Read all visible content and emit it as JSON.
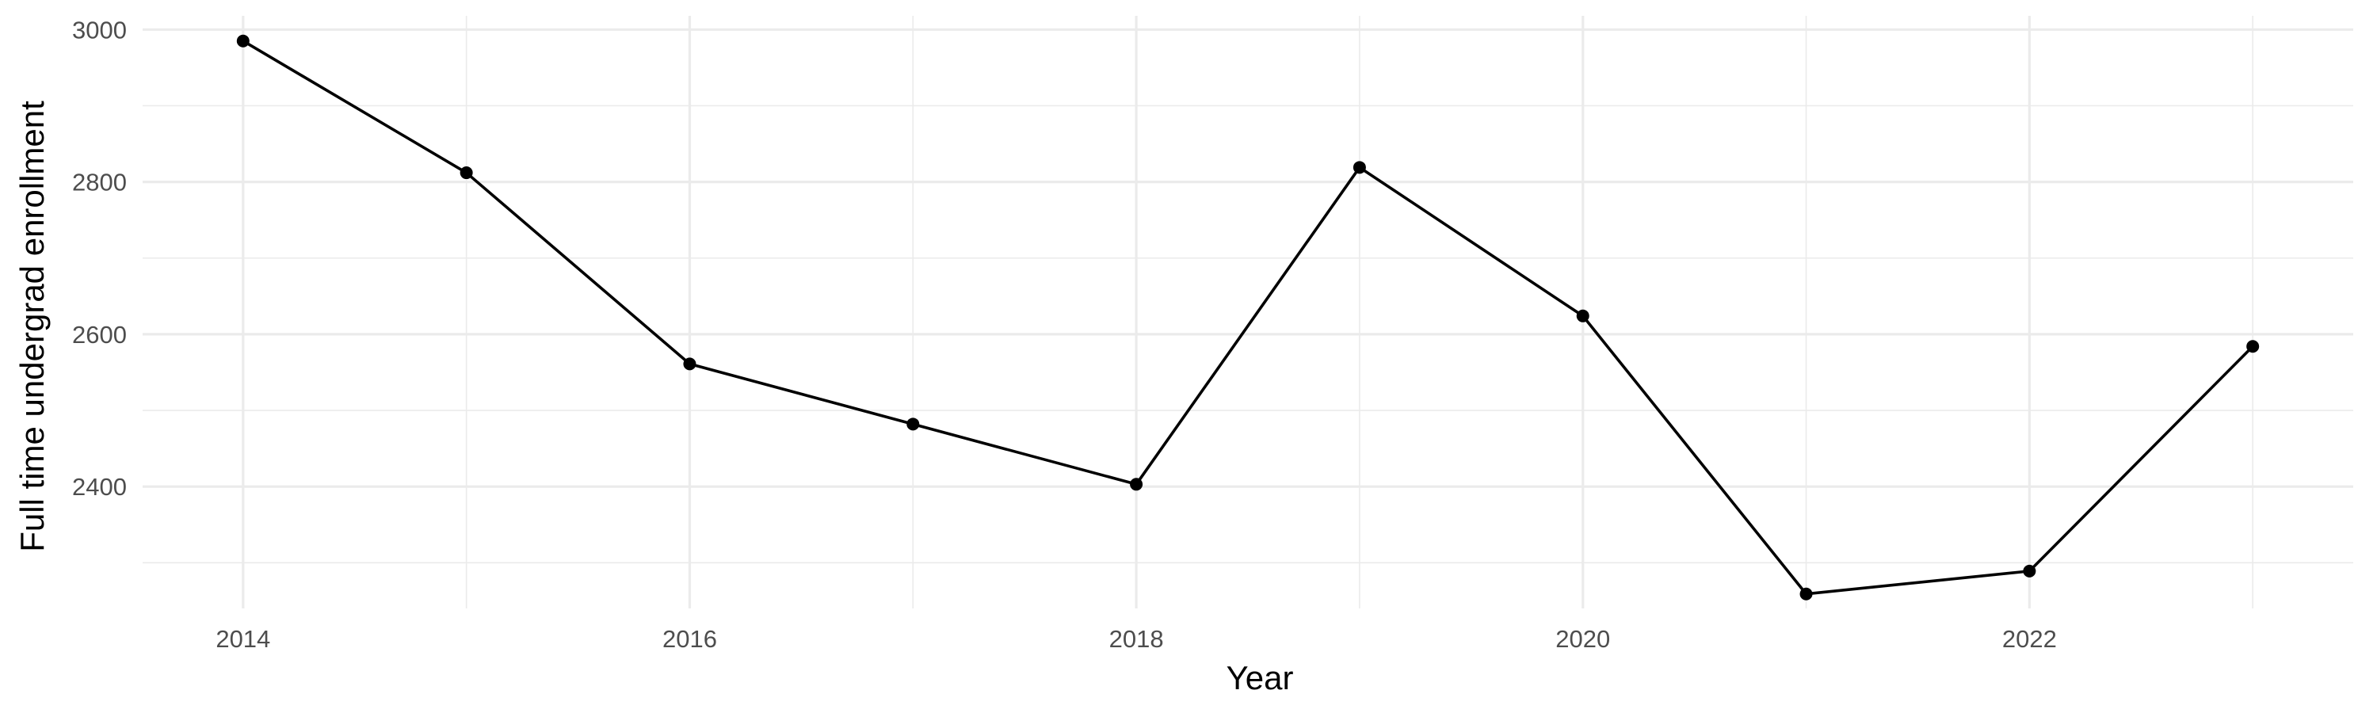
{
  "chart_data": {
    "type": "line",
    "title": "",
    "xlabel": "Year",
    "ylabel": "Full time undergrad enrollment",
    "x": [
      2014,
      2015,
      2016,
      2017,
      2018,
      2019,
      2020,
      2021,
      2022,
      2023
    ],
    "series": [
      {
        "values": [
          2985,
          2812,
          2561,
          2482,
          2403,
          2819,
          2624,
          2259,
          2289,
          2584
        ]
      }
    ],
    "xlim": [
      2013.55,
      2023.45
    ],
    "ylim": [
      2240,
      3018
    ],
    "x_major_ticks": [
      2014,
      2016,
      2018,
      2020,
      2022
    ],
    "x_minor_ticks": [
      2015,
      2017,
      2019,
      2021,
      2023
    ],
    "y_major_ticks": [
      2400,
      2600,
      2800,
      3000
    ],
    "y_minor_ticks": [
      2300,
      2500,
      2700,
      2900
    ],
    "x_tick_labels": [
      "2014",
      "2016",
      "2018",
      "2020",
      "2022"
    ],
    "y_tick_labels": [
      "2400",
      "2600",
      "2800",
      "3000"
    ],
    "grid": true,
    "legend": "none",
    "colors": {
      "line": "#000000",
      "point": "#000000",
      "grid": "#ebebeb",
      "tick_text": "#4d4d4d"
    }
  }
}
